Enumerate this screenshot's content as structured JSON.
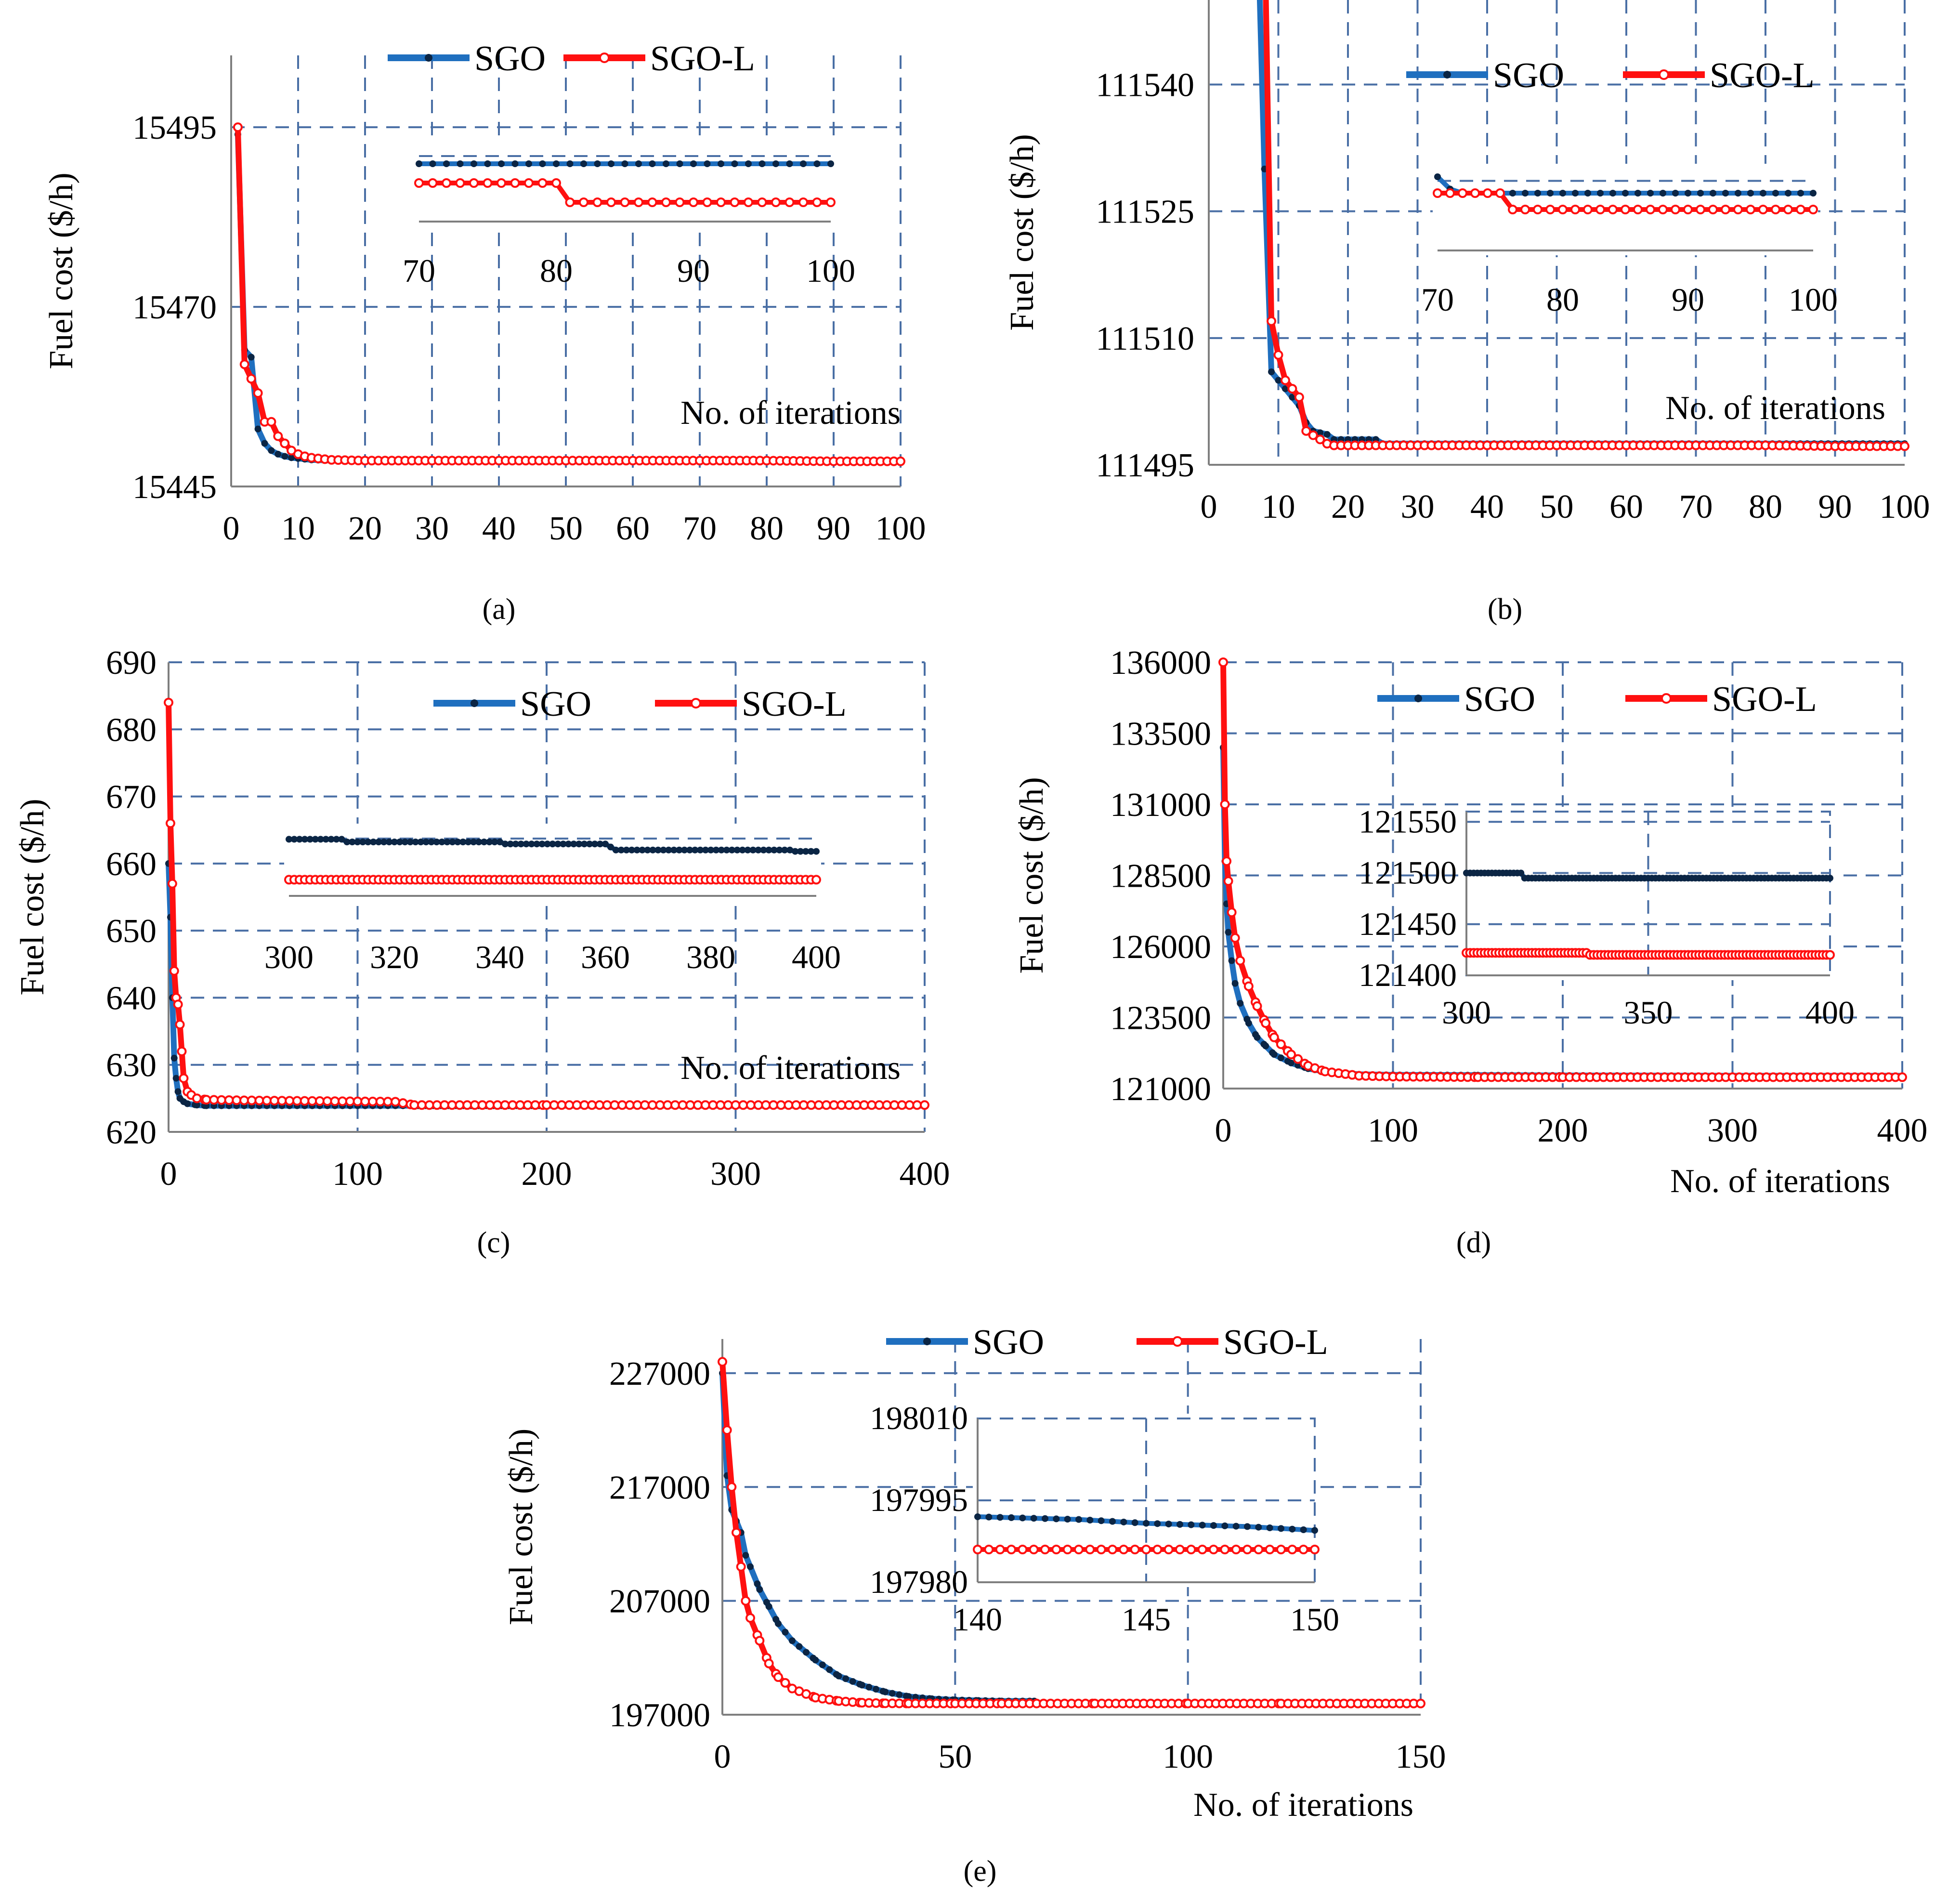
{
  "figure": {
    "colors": {
      "sgo": "#1f6fbf",
      "sgo_l": "#ff1010",
      "sgo_marker": "#0b2544",
      "grid": "#4a6fa5",
      "axis": "#7f7f7f"
    },
    "legend": [
      "SGO",
      "SGO-L"
    ],
    "ylabel": "Fuel cost ($/h)",
    "xlabel": "No. of iterations"
  },
  "chart_data": [
    {
      "id": "a",
      "caption": "(a)",
      "type": "line",
      "title": "",
      "ylabel": "Fuel cost ($/h)",
      "xlabel": "No. of iterations",
      "xlim": [
        0,
        100
      ],
      "ylim": [
        15445,
        15505
      ],
      "xticks": [
        0,
        10,
        20,
        30,
        40,
        50,
        60,
        70,
        80,
        90,
        100
      ],
      "yticks": [
        15445,
        15470,
        15495
      ],
      "series": [
        {
          "name": "SGO",
          "x": [
            1,
            2,
            3,
            4,
            5,
            6,
            7,
            8,
            9,
            10,
            11,
            12,
            15,
            20,
            30,
            40,
            50,
            60,
            70,
            80,
            90,
            100
          ],
          "y": [
            15494,
            15464,
            15463,
            15453,
            15451,
            15450,
            15449.5,
            15449.2,
            15449,
            15448.9,
            15448.8,
            15448.7,
            15448.6,
            15448.6,
            15448.6,
            15448.6,
            15448.6,
            15448.6,
            15448.6,
            15448.6,
            15448.6,
            15448.6
          ]
        },
        {
          "name": "SGO-L",
          "x": [
            1,
            2,
            3,
            4,
            5,
            6,
            7,
            8,
            9,
            10,
            11,
            12,
            15,
            20,
            30,
            40,
            50,
            60,
            70,
            80,
            90,
            100
          ],
          "y": [
            15495,
            15462,
            15460,
            15458,
            15454,
            15454,
            15452,
            15451,
            15450,
            15449.5,
            15449.2,
            15449,
            15448.7,
            15448.6,
            15448.6,
            15448.6,
            15448.6,
            15448.6,
            15448.6,
            15448.6,
            15448.5,
            15448.5
          ]
        }
      ],
      "inset": {
        "xlim": [
          70,
          100
        ],
        "xticks": [
          70,
          80,
          90,
          100
        ],
        "yticks": [],
        "ylim": [
          0,
          4
        ],
        "no_y_axis": true,
        "series": [
          {
            "name": "SGO",
            "x": [
              70,
              100
            ],
            "y": [
              3,
              3
            ]
          },
          {
            "name": "SGO-L",
            "x": [
              70,
              80,
              81,
              100
            ],
            "y": [
              2,
              2,
              1,
              1
            ]
          }
        ]
      }
    },
    {
      "id": "b",
      "caption": "(b)",
      "type": "line",
      "title": "",
      "ylabel": "Fuel cost ($/h)",
      "xlabel": "No. of iterations",
      "xlim": [
        0,
        100
      ],
      "ylim": [
        111495,
        111550
      ],
      "xticks": [
        0,
        10,
        20,
        30,
        40,
        50,
        60,
        70,
        80,
        90,
        100
      ],
      "yticks": [
        111495,
        111510,
        111525,
        111540
      ],
      "series": [
        {
          "name": "SGO",
          "x": [
            7,
            8,
            9,
            10,
            11,
            12,
            13,
            14,
            15,
            16,
            17,
            18,
            20,
            24,
            25,
            30,
            40,
            50,
            60,
            70,
            80,
            90,
            100
          ],
          "y": [
            111560,
            111530,
            111506,
            111505,
            111504,
            111503,
            111502,
            111500,
            111499,
            111498.8,
            111498.6,
            111498,
            111498,
            111498,
            111497.5,
            111497.5,
            111497.5,
            111497.5,
            111497.5,
            111497.5,
            111497.5,
            111497.5,
            111497.5
          ]
        },
        {
          "name": "SGO-L",
          "x": [
            8,
            9,
            10,
            11,
            12,
            13,
            14,
            15,
            16,
            17,
            18,
            20,
            30,
            40,
            50,
            60,
            70,
            80,
            90,
            100
          ],
          "y": [
            111560,
            111512,
            111508,
            111505,
            111504,
            111503,
            111499,
            111498.5,
            111498,
            111497.5,
            111497.3,
            111497.3,
            111497.3,
            111497.3,
            111497.3,
            111497.3,
            111497.3,
            111497.3,
            111497.2,
            111497.2
          ]
        }
      ],
      "inset": {
        "xlim": [
          70,
          100
        ],
        "xticks": [
          70,
          80,
          90,
          100
        ],
        "yticks": [],
        "ylim": [
          0,
          4
        ],
        "no_y_axis": true,
        "series": [
          {
            "name": "SGO",
            "x": [
              70,
              71,
              72,
              73,
              100
            ],
            "y": [
              3.6,
              3.0,
              2.8,
              2.8,
              2.8
            ]
          },
          {
            "name": "SGO-L",
            "x": [
              70,
              75,
              76,
              100
            ],
            "y": [
              2.8,
              2.8,
              2.0,
              2.0
            ]
          }
        ]
      }
    },
    {
      "id": "c",
      "caption": "(c)",
      "type": "line",
      "title": "",
      "ylabel": "Fuel cost ($/h)",
      "xlabel": "No. of iterations",
      "xlim": [
        0,
        400
      ],
      "ylim": [
        620,
        690
      ],
      "xticks": [
        0,
        100,
        200,
        300,
        400
      ],
      "yticks": [
        620,
        630,
        640,
        650,
        660,
        670,
        680,
        690
      ],
      "series": [
        {
          "name": "SGO",
          "x": [
            0,
            1,
            2,
            3,
            4,
            5,
            6,
            8,
            10,
            15,
            20,
            40,
            100,
            200,
            300,
            400
          ],
          "y": [
            660,
            652,
            640,
            631,
            628,
            626,
            625,
            624.5,
            624.2,
            624,
            623.9,
            623.9,
            623.9,
            623.9,
            623.9,
            623.9
          ]
        },
        {
          "name": "SGO-L",
          "x": [
            0,
            1,
            2,
            3,
            4,
            5,
            6,
            7,
            8,
            10,
            12,
            15,
            20,
            40,
            120,
            130,
            200,
            300,
            400
          ],
          "y": [
            684,
            666,
            657,
            644,
            640,
            639,
            636,
            632,
            628,
            626,
            625.5,
            625,
            624.8,
            624.7,
            624.5,
            624,
            624,
            624,
            624
          ]
        }
      ],
      "inset": {
        "xlim": [
          300,
          400
        ],
        "xticks": [
          300,
          320,
          340,
          360,
          380,
          400
        ],
        "yticks": [],
        "ylim": [
          0,
          5
        ],
        "no_y_axis": true,
        "series": [
          {
            "name": "SGO",
            "x": [
              300,
              310,
              311,
              340,
              341,
              360,
              362,
              395,
              396,
              400
            ],
            "y": [
              4.2,
              4.2,
              4.0,
              4.0,
              3.85,
              3.85,
              3.4,
              3.4,
              3.3,
              3.3
            ]
          },
          {
            "name": "SGO-L",
            "x": [
              300,
              400
            ],
            "y": [
              1.2,
              1.2
            ]
          }
        ]
      }
    },
    {
      "id": "d",
      "caption": "(d)",
      "type": "line",
      "title": "",
      "ylabel": "Fuel cost ($/h)",
      "xlabel": "No. of iterations",
      "xlim": [
        0,
        400
      ],
      "ylim": [
        121000,
        136000
      ],
      "xticks": [
        0,
        100,
        200,
        300,
        400
      ],
      "yticks": [
        121000,
        123500,
        126000,
        128500,
        131000,
        133500,
        136000
      ],
      "series": [
        {
          "name": "SGO",
          "x": [
            0,
            1,
            2,
            3,
            5,
            7,
            10,
            15,
            20,
            25,
            30,
            40,
            50,
            60,
            80,
            100,
            150,
            200,
            300,
            400
          ],
          "y": [
            133000,
            129000,
            127500,
            126500,
            125500,
            124700,
            124000,
            123300,
            122800,
            122500,
            122200,
            121900,
            121700,
            121600,
            121500,
            121480,
            121470,
            121460,
            121450,
            121450
          ]
        },
        {
          "name": "SGO-L",
          "x": [
            0,
            1,
            2,
            3,
            5,
            7,
            10,
            15,
            20,
            25,
            30,
            40,
            50,
            60,
            80,
            100,
            150,
            200,
            300,
            400
          ],
          "y": [
            136000,
            131000,
            129000,
            128300,
            127200,
            126300,
            125500,
            124600,
            123900,
            123300,
            122800,
            122200,
            121800,
            121600,
            121450,
            121420,
            121400,
            121400,
            121400,
            121400
          ]
        }
      ],
      "inset": {
        "xlim": [
          300,
          400
        ],
        "xticks": [
          300,
          350,
          400
        ],
        "yticks": [
          121400,
          121450,
          121500,
          121550
        ],
        "ylim": [
          121400,
          121560
        ],
        "series": [
          {
            "name": "SGO",
            "x": [
              300,
              315,
              316,
              400
            ],
            "y": [
              121500,
              121500,
              121495,
              121495
            ]
          },
          {
            "name": "SGO-L",
            "x": [
              300,
              333,
              334,
              400
            ],
            "y": [
              121422,
              121422,
              121420,
              121420
            ]
          }
        ]
      }
    },
    {
      "id": "e",
      "caption": "(e)",
      "type": "line",
      "title": "",
      "ylabel": "Fuel cost ($/h)",
      "xlabel": "No. of iterations",
      "xlim": [
        0,
        150
      ],
      "ylim": [
        197000,
        230000
      ],
      "xticks": [
        0,
        50,
        100,
        150
      ],
      "yticks": [
        197000,
        207000,
        217000,
        227000
      ],
      "series": [
        {
          "name": "SGO",
          "x": [
            0,
            1,
            2,
            3,
            4,
            5,
            6,
            8,
            10,
            12,
            15,
            20,
            25,
            30,
            35,
            40,
            45,
            50,
            55,
            60,
            67
          ],
          "y": [
            227000,
            218000,
            215000,
            214000,
            213000,
            211000,
            210000,
            208000,
            206500,
            205000,
            203500,
            201800,
            200400,
            199600,
            199000,
            198600,
            198400,
            198300,
            198250,
            198200,
            198200
          ]
        },
        {
          "name": "SGO-L",
          "x": [
            0,
            1,
            2,
            3,
            4,
            5,
            6,
            8,
            10,
            12,
            15,
            20,
            25,
            30,
            35,
            40,
            50,
            60,
            80,
            100,
            120,
            150
          ],
          "y": [
            228000,
            222000,
            217000,
            213000,
            210000,
            207000,
            205500,
            203500,
            201500,
            200300,
            199300,
            198500,
            198200,
            198050,
            198000,
            197990,
            197985,
            197985,
            197985,
            197985,
            197984,
            197984
          ]
        }
      ],
      "inset": {
        "xlim": [
          140,
          150
        ],
        "xticks": [
          140,
          145,
          150
        ],
        "yticks": [
          197980,
          197995,
          198010
        ],
        "ylim": [
          197980,
          198010
        ],
        "series": [
          {
            "name": "SGO",
            "x": [
              140,
              143,
              145,
              148,
              150
            ],
            "y": [
              197992,
              197991.5,
              197990.8,
              197990.2,
              197989.5
            ]
          },
          {
            "name": "SGO-L",
            "x": [
              140,
              150
            ],
            "y": [
              197986,
              197986
            ]
          }
        ]
      }
    }
  ]
}
